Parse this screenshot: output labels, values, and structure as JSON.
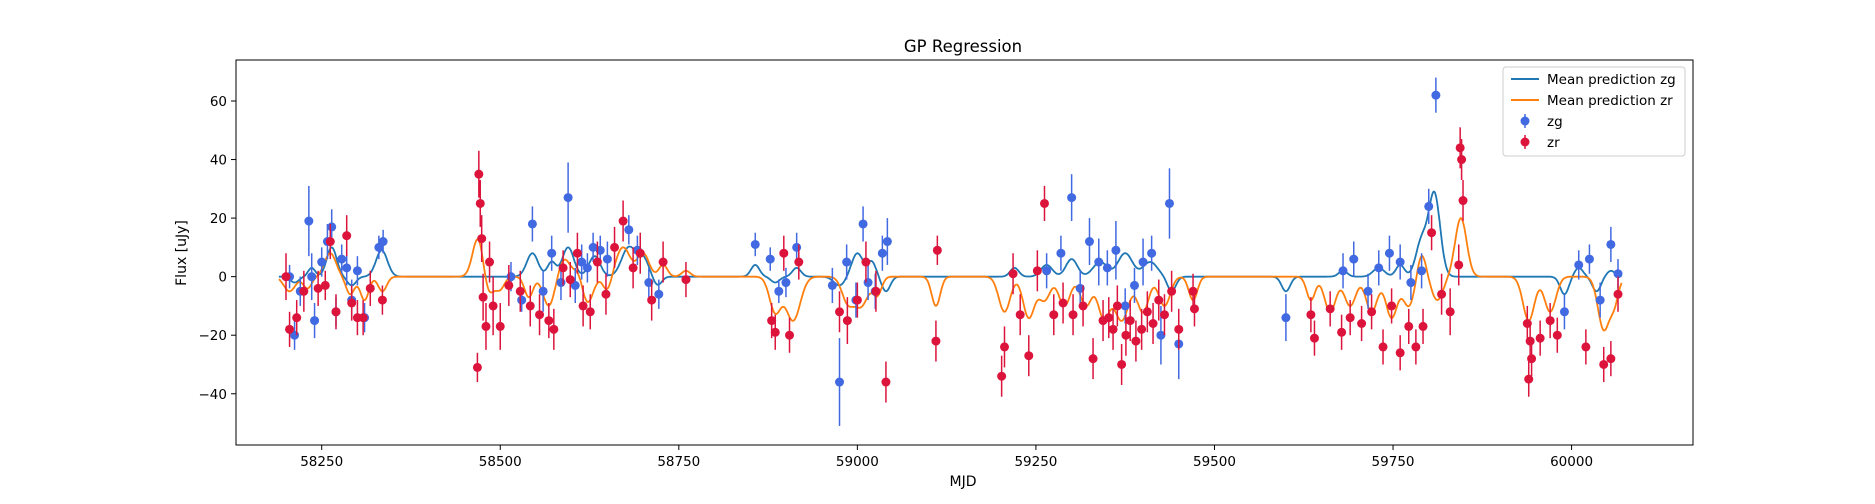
{
  "chart_data": {
    "type": "scatter",
    "title": "GP Regression",
    "xlabel": "MJD",
    "ylabel": "Flux [uJy]",
    "xlim": [
      58130,
      60170
    ],
    "ylim": [
      -57.5,
      74
    ],
    "xticks": [
      58250,
      58500,
      58750,
      59000,
      59250,
      59500,
      59750,
      60000
    ],
    "yticks": [
      -40,
      -20,
      0,
      20,
      40,
      60
    ],
    "grid": false,
    "legend_position": "top-right",
    "colors": {
      "zg_line": "#1f77b4",
      "zr_line": "#ff7f0e",
      "zg_points": "#4169e1",
      "zr_points": "#dc143c"
    },
    "legend": [
      {
        "label": "Mean prediction zg",
        "kind": "line",
        "color": "#1f77b4"
      },
      {
        "label": "Mean prediction zr",
        "kind": "line",
        "color": "#ff7f0e"
      },
      {
        "label": "zg",
        "kind": "errorbar",
        "color": "#4169e1"
      },
      {
        "label": "zr",
        "kind": "errorbar",
        "color": "#dc143c"
      }
    ],
    "series": [
      {
        "name": "zg",
        "x": [
          58205,
          58212,
          58220,
          58232,
          58236,
          58240,
          58250,
          58258,
          58264,
          58270,
          58278,
          58285,
          58292,
          58300,
          58310,
          58330,
          58336,
          58515,
          58530,
          58545,
          58560,
          58572,
          58585,
          58595,
          58605,
          58614,
          58622,
          58630,
          58640,
          58650,
          58680,
          58692,
          58708,
          58722,
          58857,
          58878,
          58890,
          58900,
          58915,
          58965,
          58975,
          58985,
          58998,
          59008,
          59015,
          59025,
          59035,
          59042,
          59265,
          59285,
          59300,
          59312,
          59325,
          59338,
          59350,
          59362,
          59375,
          59388,
          59400,
          59412,
          59425,
          59437,
          59450,
          59600,
          59680,
          59695,
          59715,
          59730,
          59745,
          59760,
          59775,
          59790,
          59800,
          59810,
          59990,
          60010,
          60025,
          60040,
          60055,
          60065
        ],
        "y": [
          0,
          -20,
          -5,
          19,
          0,
          -15,
          5,
          12,
          17,
          -12,
          6,
          3,
          -8,
          2,
          -14,
          10,
          12,
          0,
          -8,
          18,
          -5,
          8,
          -2,
          27,
          -3,
          5,
          3,
          10,
          9,
          6,
          16,
          9,
          -2,
          -6,
          11,
          6,
          -5,
          -2,
          10,
          -3,
          -36,
          5,
          -8,
          18,
          -2,
          -5,
          8,
          12,
          2,
          8,
          27,
          -4,
          12,
          5,
          3,
          9,
          -10,
          -3,
          5,
          8,
          -20,
          25,
          -23,
          -14,
          2,
          6,
          -5,
          3,
          8,
          5,
          -2,
          2,
          24,
          62,
          -12,
          4,
          6,
          -8,
          11,
          1
        ],
        "err": [
          4,
          5,
          5,
          12,
          8,
          6,
          5,
          6,
          6,
          5,
          5,
          6,
          7,
          5,
          5,
          4,
          4,
          5,
          4,
          6,
          7,
          6,
          6,
          12,
          6,
          6,
          5,
          5,
          5,
          6,
          5,
          5,
          5,
          5,
          4,
          4,
          4,
          5,
          5,
          6,
          15,
          6,
          6,
          6,
          6,
          6,
          6,
          8,
          6,
          6,
          8,
          6,
          8,
          8,
          6,
          10,
          6,
          6,
          8,
          6,
          10,
          12,
          12,
          8,
          6,
          6,
          6,
          6,
          6,
          6,
          6,
          6,
          6,
          6,
          6,
          5,
          5,
          6,
          6,
          5
        ]
      },
      {
        "name": "zr",
        "x": [
          58200,
          58205,
          58215,
          58225,
          58245,
          58255,
          58262,
          58270,
          58285,
          58292,
          58300,
          58308,
          58318,
          58335,
          58468,
          58470,
          58472,
          58474,
          58476,
          58480,
          58485,
          58490,
          58500,
          58512,
          58528,
          58542,
          58555,
          58568,
          58575,
          58588,
          58598,
          58608,
          58616,
          58626,
          58636,
          58648,
          58660,
          58672,
          58686,
          58696,
          58712,
          58728,
          58760,
          58880,
          58885,
          58897,
          58905,
          58918,
          58975,
          58986,
          59000,
          59012,
          59026,
          59040,
          59110,
          59112,
          59202,
          59206,
          59218,
          59228,
          59240,
          59252,
          59262,
          59275,
          59288,
          59302,
          59316,
          59330,
          59344,
          59352,
          59358,
          59364,
          59370,
          59376,
          59382,
          59390,
          59398,
          59406,
          59414,
          59422,
          59430,
          59440,
          59450,
          59470,
          59472,
          59635,
          59640,
          59662,
          59678,
          59690,
          59706,
          59720,
          59736,
          59748,
          59760,
          59772,
          59782,
          59792,
          59804,
          59818,
          59830,
          59842,
          59844,
          59846,
          59848,
          59938,
          59940,
          59942,
          59944,
          59956,
          59970,
          59980,
          60020,
          60045,
          60055,
          60065
        ],
        "y": [
          0,
          -18,
          -14,
          -5,
          -4,
          -3,
          12,
          -12,
          14,
          -9,
          -14,
          -14,
          -4,
          -8,
          -31,
          35,
          25,
          13,
          -7,
          -17,
          5,
          -10,
          -17,
          -3,
          -5,
          -10,
          -13,
          -15,
          -18,
          3,
          -1,
          8,
          -10,
          -12,
          5,
          -6,
          10,
          19,
          3,
          8,
          -8,
          5,
          -1,
          -15,
          -19,
          8,
          -20,
          5,
          -12,
          -15,
          -8,
          5,
          -5,
          -36,
          -22,
          9,
          -34,
          -24,
          1,
          -13,
          -27,
          2,
          25,
          -13,
          -9,
          -13,
          -10,
          -28,
          -15,
          -14,
          -18,
          -10,
          -30,
          -20,
          -15,
          -22,
          -18,
          -12,
          -16,
          -8,
          -13,
          -5,
          -18,
          -5,
          -11,
          -13,
          -21,
          -11,
          -19,
          -14,
          -16,
          -12,
          -24,
          -10,
          -26,
          -17,
          -24,
          -17,
          15,
          -6,
          -12,
          4,
          44,
          40,
          26,
          -16,
          -35,
          -22,
          -28,
          -21,
          -15,
          -20,
          -24,
          -30,
          -28,
          -6
        ],
        "err": [
          8,
          6,
          6,
          7,
          6,
          5,
          6,
          6,
          7,
          6,
          6,
          6,
          6,
          5,
          5,
          8,
          8,
          8,
          8,
          8,
          7,
          10,
          8,
          7,
          7,
          7,
          7,
          6,
          7,
          6,
          6,
          7,
          7,
          6,
          7,
          7,
          7,
          7,
          7,
          7,
          7,
          7,
          6,
          6,
          6,
          6,
          6,
          6,
          7,
          8,
          6,
          7,
          7,
          7,
          7,
          5,
          7,
          7,
          7,
          7,
          7,
          7,
          6,
          7,
          7,
          7,
          7,
          7,
          7,
          7,
          7,
          7,
          7,
          7,
          7,
          7,
          7,
          7,
          7,
          7,
          7,
          7,
          7,
          6,
          6,
          6,
          6,
          6,
          6,
          6,
          6,
          6,
          6,
          6,
          6,
          6,
          6,
          6,
          6,
          7,
          8,
          7,
          7,
          7,
          7,
          6,
          6,
          6,
          6,
          6,
          6,
          6,
          6,
          6,
          6,
          6
        ]
      }
    ],
    "mean_prediction": {
      "zg_peaks": [
        [
          58212,
          -2,
          6
        ],
        [
          58236,
          3,
          5
        ],
        [
          58264,
          10,
          7
        ],
        [
          58292,
          -3,
          6
        ],
        [
          58334,
          9,
          8
        ],
        [
          58545,
          8,
          8
        ],
        [
          58572,
          5,
          6
        ],
        [
          58595,
          10,
          8
        ],
        [
          58632,
          7,
          8
        ],
        [
          58680,
          10,
          10
        ],
        [
          58700,
          6,
          8
        ],
        [
          58720,
          -3,
          6
        ],
        [
          58857,
          4,
          6
        ],
        [
          58885,
          -2,
          6
        ],
        [
          58915,
          3,
          6
        ],
        [
          58975,
          -3,
          8
        ],
        [
          59000,
          8,
          8
        ],
        [
          59020,
          5,
          6
        ],
        [
          59040,
          -5,
          6
        ],
        [
          59220,
          3,
          6
        ],
        [
          59265,
          4,
          8
        ],
        [
          59300,
          6,
          8
        ],
        [
          59340,
          5,
          10
        ],
        [
          59375,
          8,
          10
        ],
        [
          59410,
          5,
          10
        ],
        [
          59440,
          -5,
          6
        ],
        [
          59600,
          -5,
          6
        ],
        [
          59680,
          2,
          6
        ],
        [
          59730,
          3,
          8
        ],
        [
          59760,
          4,
          6
        ],
        [
          59790,
          12,
          8
        ],
        [
          59808,
          28,
          8
        ],
        [
          59990,
          -6,
          6
        ],
        [
          60010,
          3,
          6
        ],
        [
          60035,
          -5,
          6
        ],
        [
          60055,
          2,
          6
        ]
      ],
      "zr_peaks": [
        [
          58205,
          -5,
          8
        ],
        [
          58230,
          -4,
          6
        ],
        [
          58262,
          8,
          8
        ],
        [
          58290,
          -6,
          6
        ],
        [
          58310,
          -8,
          6
        ],
        [
          58335,
          -5,
          6
        ],
        [
          58470,
          15,
          8
        ],
        [
          58482,
          -8,
          8
        ],
        [
          58500,
          -4,
          6
        ],
        [
          58540,
          -7,
          6
        ],
        [
          58568,
          -10,
          8
        ],
        [
          58590,
          6,
          8
        ],
        [
          58610,
          3,
          6
        ],
        [
          58622,
          -9,
          8
        ],
        [
          58650,
          -5,
          6
        ],
        [
          58672,
          10,
          10
        ],
        [
          58700,
          8,
          8
        ],
        [
          58728,
          4,
          6
        ],
        [
          58760,
          2,
          6
        ],
        [
          58885,
          -12,
          8
        ],
        [
          58910,
          -15,
          10
        ],
        [
          58986,
          -8,
          8
        ],
        [
          59005,
          -10,
          10
        ],
        [
          59028,
          -6,
          6
        ],
        [
          59110,
          -10,
          6
        ],
        [
          59206,
          -12,
          8
        ],
        [
          59240,
          -14,
          8
        ],
        [
          59262,
          -8,
          8
        ],
        [
          59290,
          -10,
          8
        ],
        [
          59320,
          -10,
          8
        ],
        [
          59345,
          -14,
          8
        ],
        [
          59370,
          -15,
          10
        ],
        [
          59400,
          -12,
          8
        ],
        [
          59430,
          -10,
          8
        ],
        [
          59470,
          -8,
          6
        ],
        [
          59635,
          -8,
          6
        ],
        [
          59662,
          -12,
          8
        ],
        [
          59690,
          -10,
          8
        ],
        [
          59720,
          -12,
          8
        ],
        [
          59748,
          -14,
          8
        ],
        [
          59772,
          -10,
          8
        ],
        [
          59790,
          8,
          6
        ],
        [
          59812,
          -8,
          8
        ],
        [
          59845,
          20,
          8
        ],
        [
          59940,
          -15,
          8
        ],
        [
          59970,
          -12,
          8
        ],
        [
          60045,
          -18,
          8
        ],
        [
          60060,
          -8,
          6
        ]
      ]
    }
  }
}
